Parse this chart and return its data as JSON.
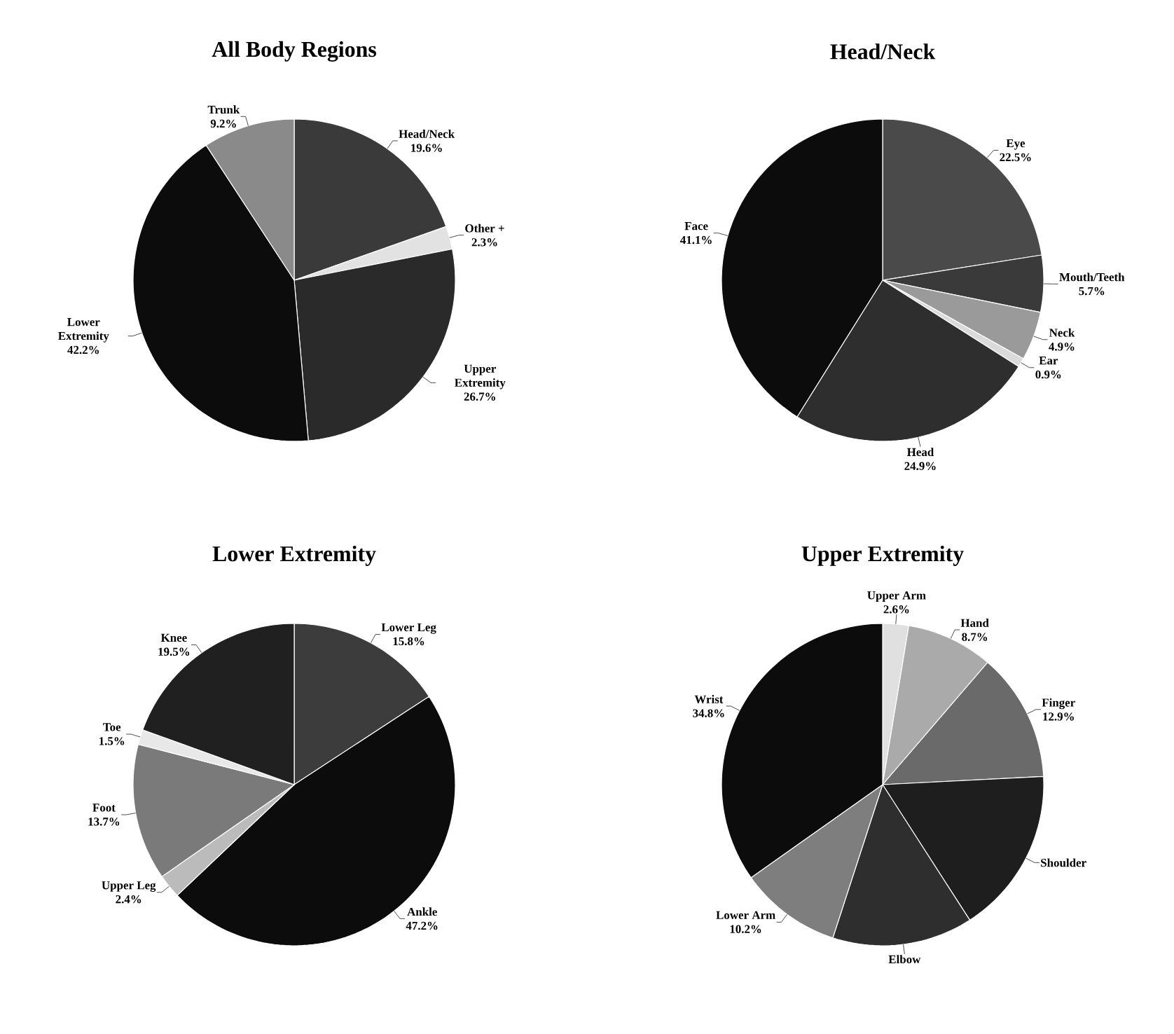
{
  "chart_data": [
    {
      "type": "pie",
      "title": "All Body Regions",
      "categories": [
        "Head/Neck",
        "Other +",
        "Upper Extremity",
        "Lower Extremity",
        "Trunk"
      ],
      "values": [
        19.6,
        2.3,
        26.7,
        42.2,
        9.2
      ],
      "value_labels": [
        "19.6%",
        "2.3%",
        "26.7%",
        "42.2%",
        "9.2%"
      ],
      "colors": [
        "#3a3a3a",
        "#e2e2e2",
        "#2a2a2a",
        "#0c0c0c",
        "#8a8a8a"
      ]
    },
    {
      "type": "pie",
      "title": "Head/Neck",
      "categories": [
        "Eye",
        "Mouth/Teeth",
        "Neck",
        "Ear",
        "Head",
        "Face"
      ],
      "values": [
        22.5,
        5.7,
        4.9,
        0.9,
        24.9,
        41.1
      ],
      "value_labels": [
        "22.5%",
        "5.7%",
        "4.9%",
        "0.9%",
        "24.9%",
        "41.1%"
      ],
      "colors": [
        "#4a4a4a",
        "#3a3a3a",
        "#9a9a9a",
        "#dadada",
        "#2e2e2e",
        "#0c0c0c"
      ]
    },
    {
      "type": "pie",
      "title": "Lower Extremity",
      "categories": [
        "Lower Leg",
        "Ankle",
        "Upper Leg",
        "Foot",
        "Toe",
        "Knee"
      ],
      "values": [
        15.8,
        47.2,
        2.4,
        13.7,
        1.5,
        19.5
      ],
      "value_labels": [
        "15.8%",
        "47.2%",
        "2.4%",
        "13.7%",
        "1.5%",
        "19.5%"
      ],
      "colors": [
        "#3c3c3c",
        "#0c0c0c",
        "#bbbbbb",
        "#7a7a7a",
        "#e8e8e8",
        "#202020"
      ]
    },
    {
      "type": "pie",
      "title": "Upper Extremity",
      "categories": [
        "Upper Arm",
        "Hand",
        "Finger",
        "Shoulder",
        "Elbow",
        "Lower Arm",
        "Wrist"
      ],
      "values": [
        2.6,
        8.7,
        12.9,
        16.7,
        14.1,
        10.2,
        34.8
      ],
      "value_labels": [
        "2.6%",
        "8.7%",
        "12.9%",
        null,
        null,
        "10.2%",
        "34.8%"
      ],
      "colors": [
        "#e0e0e0",
        "#aaaaaa",
        "#6a6a6a",
        "#1e1e1e",
        "#2e2e2e",
        "#7e7e7e",
        "#0c0c0c"
      ]
    }
  ]
}
